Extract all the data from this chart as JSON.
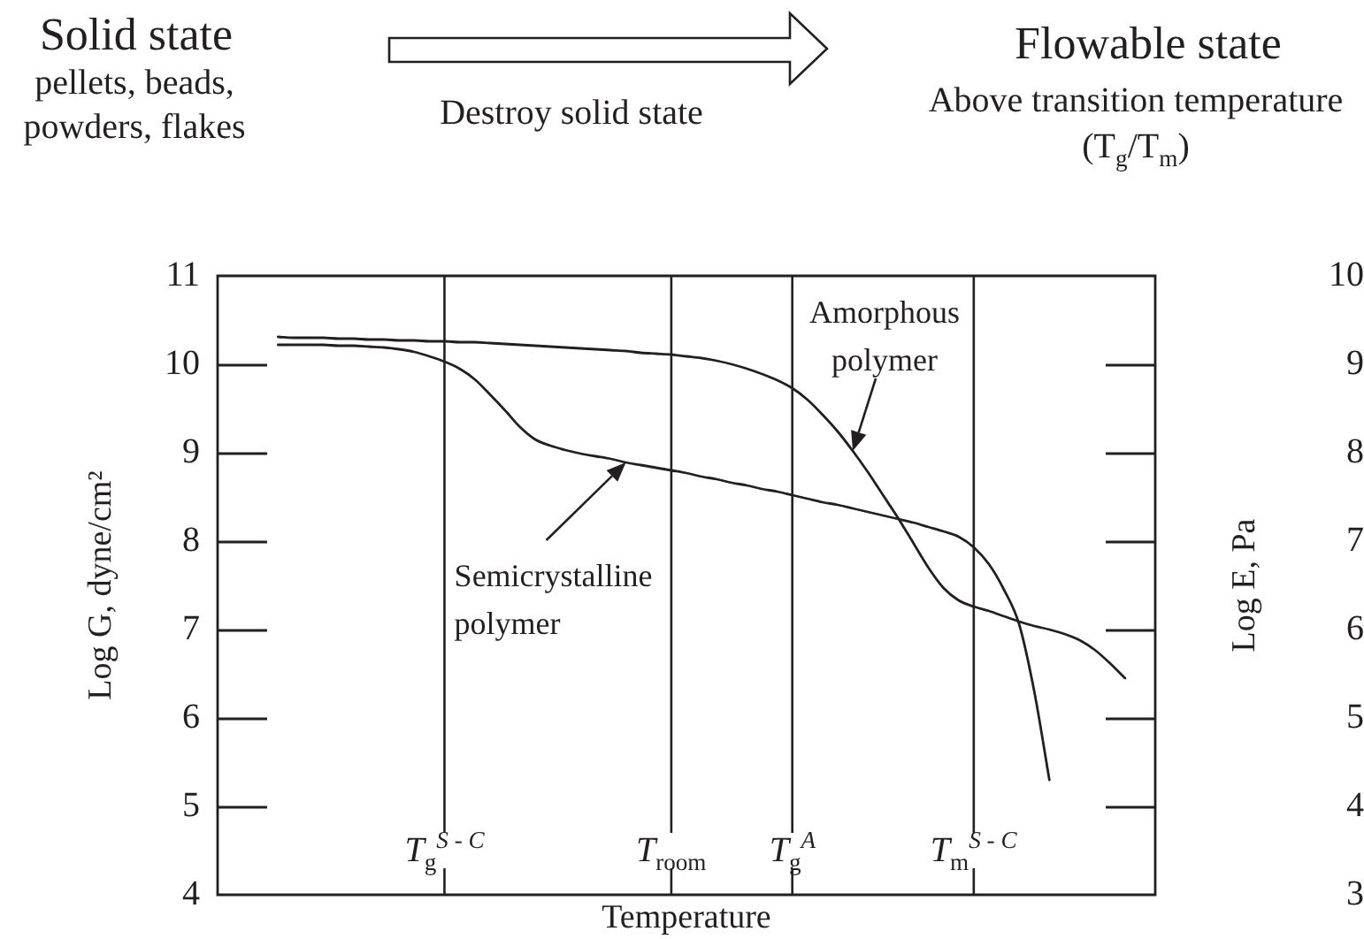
{
  "chart_data": {
    "type": "line",
    "annotations": [
      "Solid state",
      "pellets, beads, powders, flakes",
      "Destroy solid state",
      "Flowable state",
      "Above transition temperature (T$_{g}$/T$_{m}$)"
    ],
    "xlabel": "Temperature",
    "ylabel": "Log G, dyne/cm²",
    "y2label": "Log E, Pa",
    "categories": [
      null,
      null,
      null,
      null,
      null,
      null,
      null,
      null,
      null,
      null,
      null,
      null,
      null,
      null,
      null,
      "T$_{g}$$^{S - C}$",
      null,
      null,
      null,
      null,
      null,
      null,
      null,
      null,
      null,
      null,
      null,
      null,
      null,
      null,
      "T$_{room}$",
      null,
      null,
      null,
      null,
      null,
      null,
      null,
      "T$_{g}$$^{A}$",
      null,
      null,
      null,
      null,
      null,
      null,
      null,
      null,
      null,
      null,
      null,
      "T$_{m}$$^{S - C}$",
      null,
      null,
      null,
      null,
      null,
      null,
      null,
      null,
      null,
      null,
      null,
      null
    ],
    "series": [
      {
        "name": "Amorphous polymer",
        "color": "#231f20",
        "values": [
          null,
          null,
          null,
          null,
          10.31,
          10.3,
          10.3,
          10.3,
          10.29,
          10.29,
          10.28,
          10.28,
          10.27,
          10.27,
          10.26,
          10.26,
          10.25,
          10.25,
          10.24,
          10.23,
          10.22,
          10.21,
          10.2,
          10.19,
          10.18,
          10.17,
          10.16,
          10.15,
          10.13,
          10.12,
          10.11,
          10.09,
          10.07,
          10.04,
          10.0,
          9.95,
          9.89,
          9.82,
          9.73,
          9.6,
          9.43,
          9.24,
          9.02,
          8.78,
          8.52,
          8.26,
          7.98,
          7.7,
          7.47,
          7.33,
          7.26,
          7.21,
          7.15,
          7.09,
          7.04,
          7.0,
          6.95,
          6.88,
          6.77,
          6.62,
          6.45,
          null,
          null
        ]
      },
      {
        "name": "Semicrystalline polymer",
        "color": "#231f20",
        "values": [
          null,
          null,
          null,
          null,
          10.22,
          10.22,
          10.22,
          10.22,
          10.21,
          10.21,
          10.2,
          10.19,
          10.17,
          10.14,
          10.09,
          10.03,
          9.95,
          9.83,
          9.66,
          9.48,
          9.29,
          9.15,
          9.08,
          9.03,
          8.99,
          8.96,
          8.93,
          8.89,
          8.86,
          8.83,
          8.8,
          8.77,
          8.73,
          8.7,
          8.66,
          8.63,
          8.59,
          8.56,
          8.52,
          8.48,
          8.44,
          8.41,
          8.37,
          8.33,
          8.29,
          8.25,
          8.21,
          8.16,
          8.11,
          8.05,
          7.93,
          7.74,
          7.45,
          7.06,
          6.3,
          5.3,
          null,
          null,
          null,
          null,
          null,
          null,
          null
        ]
      }
    ],
    "ylim": [
      4,
      11
    ],
    "yticks": [
      4,
      5,
      6,
      7,
      8,
      9,
      10,
      11
    ],
    "y2lim": [
      3,
      10
    ],
    "y2ticks": [
      3,
      4,
      5,
      6,
      7,
      8,
      9,
      10
    ],
    "ref_lines": [
      {
        "axis": "x",
        "value": "T$_{g}$$^{S - C}$"
      },
      {
        "axis": "x",
        "value": "T$_{room}$"
      },
      {
        "axis": "x",
        "value": "T$_{g}$$^{A}$"
      },
      {
        "axis": "x",
        "value": "T$_{m}$$^{S - C}$"
      }
    ]
  }
}
